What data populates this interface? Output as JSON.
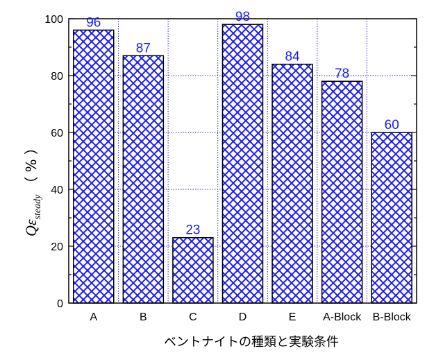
{
  "chart_data": {
    "type": "bar",
    "categories": [
      "A",
      "B",
      "C",
      "D",
      "E",
      "A-Block",
      "B-Block"
    ],
    "values": [
      96,
      87,
      23,
      98,
      84,
      78,
      60
    ],
    "data_labels": [
      "96",
      "87",
      "23",
      "98",
      "84",
      "78",
      "60"
    ],
    "xlabel": "ベントナイトの種類と実験条件",
    "ylabel": {
      "main": "Qε",
      "subscript": "steady",
      "unit": "（ % ）"
    },
    "ylim": [
      0,
      100
    ],
    "yticks": [
      0,
      20,
      40,
      60,
      80,
      100
    ],
    "ytick_labels": [
      "0",
      "20",
      "40",
      "60",
      "80",
      "100"
    ],
    "grid": "dotted vertical and horizontal",
    "bar_fill": "diagonal crosshatch",
    "colors": {
      "bar_hatch": "#1a1aff",
      "grid": "#2b2bd6",
      "data_label": "#1a1aff",
      "axis": "#000000"
    }
  }
}
